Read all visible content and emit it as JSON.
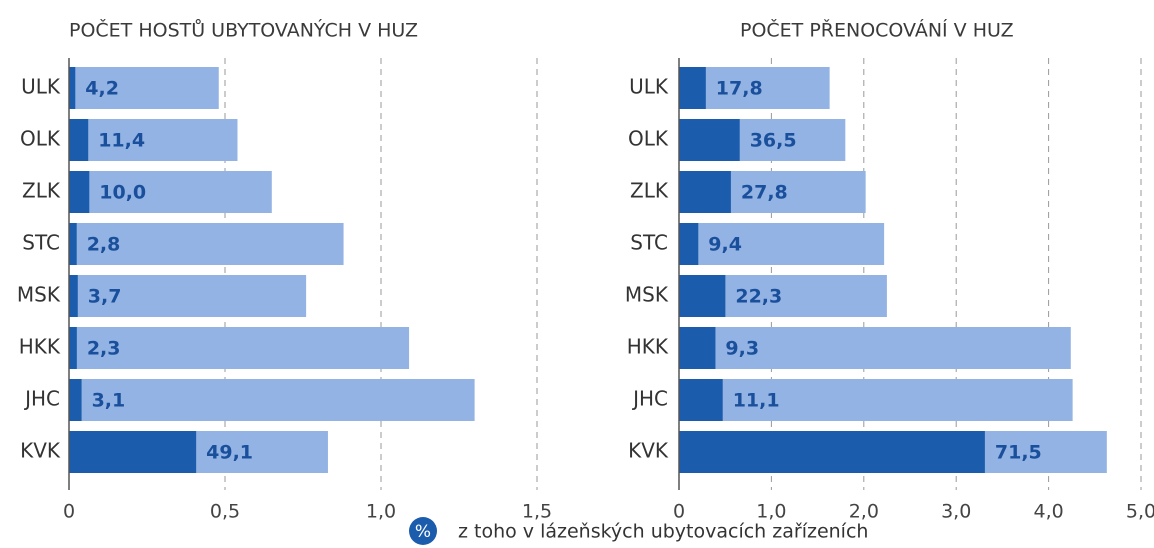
{
  "chart_data": [
    {
      "type": "bar",
      "title": "POČET HOSTŮ UBYTOVANÝCH V HUZ",
      "categories": [
        "ULK",
        "OLK",
        "ZLK",
        "STC",
        "MSK",
        "HKK",
        "JHC",
        "KVK"
      ],
      "series": [
        {
          "color": "#92b3e3",
          "values": [
            0.48,
            0.54,
            0.65,
            0.88,
            0.76,
            1.09,
            1.3,
            0.83
          ]
        },
        {
          "color": "#1c5cad",
          "values": [
            4.2,
            11.4,
            10.0,
            2.8,
            3.7,
            2.3,
            3.1,
            49.1
          ],
          "value_labels": [
            "4,2",
            "11,4",
            "10,0",
            "2,8",
            "3,7",
            "2,3",
            "3,1",
            "49,1"
          ]
        }
      ],
      "xlim": [
        0,
        1.5
      ],
      "xticks": [
        0,
        {
          "value": 0.5,
          "label": "0,5"
        },
        {
          "value": 1.0,
          "label": "1,0"
        },
        {
          "value": 1.5,
          "label": "1,5"
        }
      ],
      "grid": true
    },
    {
      "type": "bar",
      "title": "POČET PŘENOCOVÁNÍ V HUZ",
      "categories": [
        "ULK",
        "OLK",
        "ZLK",
        "STC",
        "MSK",
        "HKK",
        "JHC",
        "KVK"
      ],
      "series": [
        {
          "color": "#92b3e3",
          "values": [
            1.63,
            1.8,
            2.02,
            2.22,
            2.25,
            4.24,
            4.26,
            4.63
          ]
        },
        {
          "color": "#1c5cad",
          "values": [
            17.8,
            36.5,
            27.8,
            9.4,
            22.3,
            9.3,
            11.1,
            71.5
          ],
          "value_labels": [
            "17,8",
            "36,5",
            "27,8",
            "9,4",
            "22,3",
            "9,3",
            "11,1",
            "71,5"
          ]
        }
      ],
      "xlim": [
        0,
        5.0
      ],
      "xticks": [
        0,
        {
          "value": 1.0,
          "label": "1,0"
        },
        {
          "value": 2.0,
          "label": "2,0"
        },
        {
          "value": 3.0,
          "label": "3,0"
        },
        {
          "value": 4.0,
          "label": "4,0"
        },
        {
          "value": 5.0,
          "label": "5,0"
        }
      ],
      "grid": true
    }
  ],
  "legend": {
    "symbol": "%",
    "label": "z toho v lázeňských ubytovacích zařízeních"
  }
}
